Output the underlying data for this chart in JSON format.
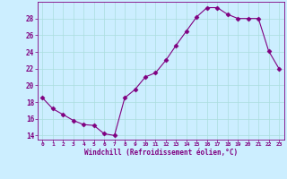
{
  "x": [
    0,
    1,
    2,
    3,
    4,
    5,
    6,
    7,
    8,
    9,
    10,
    11,
    12,
    13,
    14,
    15,
    16,
    17,
    18,
    19,
    20,
    21,
    22,
    23
  ],
  "y": [
    18.5,
    17.2,
    16.5,
    15.8,
    15.3,
    15.2,
    14.2,
    14.0,
    18.5,
    19.5,
    21.0,
    21.5,
    23.0,
    24.8,
    26.5,
    28.2,
    29.3,
    29.3,
    28.5,
    28.0,
    28.0,
    28.0,
    24.1,
    22.0
  ],
  "line_color": "#800080",
  "marker": "D",
  "marker_size": 2.5,
  "bg_color": "#cceeff",
  "grid_color": "#aadddd",
  "xlabel": "Windchill (Refroidissement éolien,°C)",
  "ylim": [
    13.5,
    30.0
  ],
  "xlim": [
    -0.5,
    23.5
  ],
  "yticks": [
    14,
    16,
    18,
    20,
    22,
    24,
    26,
    28
  ],
  "xticks": [
    0,
    1,
    2,
    3,
    4,
    5,
    6,
    7,
    8,
    9,
    10,
    11,
    12,
    13,
    14,
    15,
    16,
    17,
    18,
    19,
    20,
    21,
    22,
    23
  ],
  "label_color": "#800080",
  "tick_color": "#800080",
  "axis_color": "#800080"
}
